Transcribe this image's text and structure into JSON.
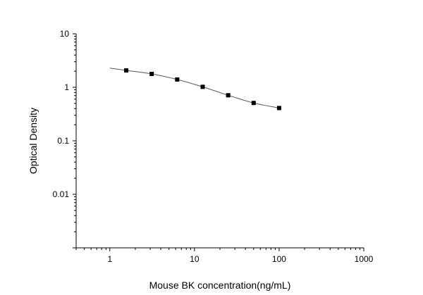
{
  "chart_data": {
    "type": "scatter",
    "xlabel": "Mouse BK concentration(ng/mL)",
    "ylabel": "Optical Density",
    "xscale": "log",
    "yscale": "log",
    "xlim": [
      0.4,
      1000
    ],
    "ylim": [
      0.001,
      10
    ],
    "grid": false,
    "x_tick_labels": [
      "1",
      "10",
      "100",
      "1000"
    ],
    "y_tick_labels": [
      "10",
      "1",
      "0.1",
      "0.01"
    ],
    "series": [
      {
        "x": [
          1.5625,
          3.125,
          6.25,
          12.5,
          25,
          50,
          100
        ],
        "y": [
          2.07,
          1.78,
          1.4,
          1.02,
          0.71,
          0.51,
          0.41
        ],
        "marker": "square",
        "color": "#000000"
      }
    ],
    "fit_curve": {
      "type": "four-parameter logistic",
      "x_range": [
        1,
        100
      ],
      "color": "#555555"
    }
  }
}
